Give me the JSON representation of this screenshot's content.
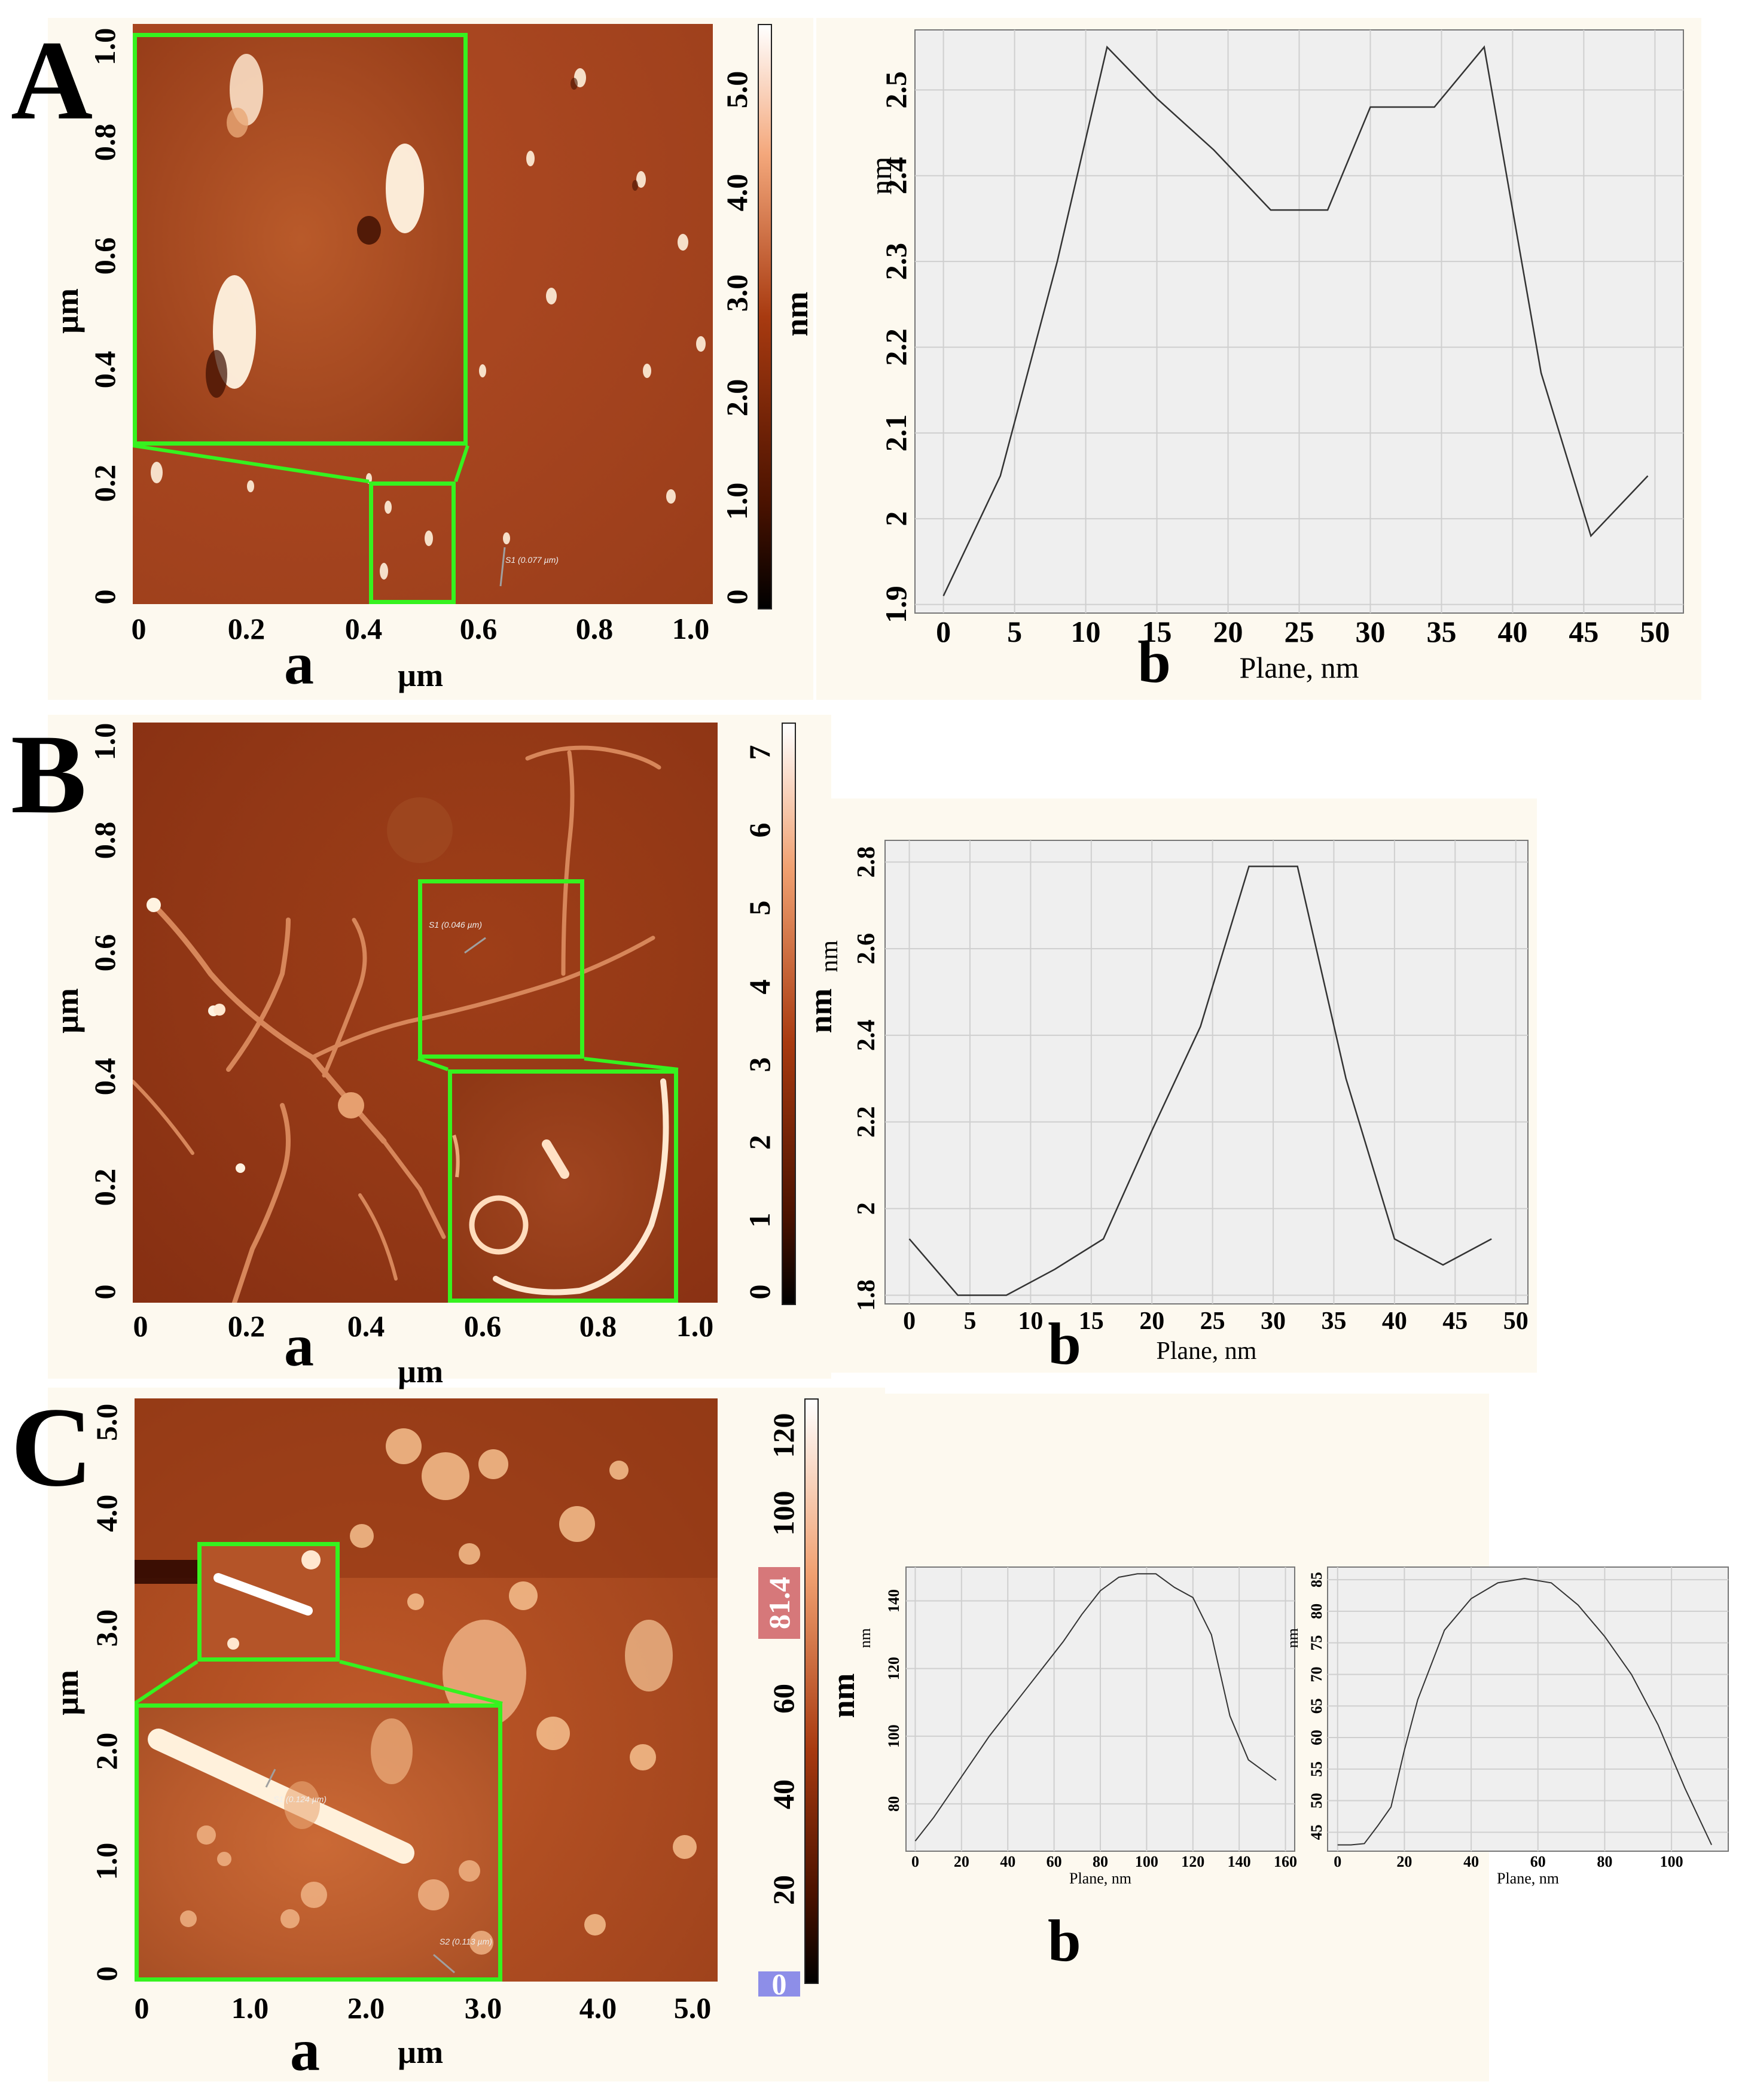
{
  "panels": [
    {
      "letter": "A",
      "afm": {
        "sub_label": "a",
        "x_label": "µm",
        "y_label": "µm",
        "x_ticks": [
          "0",
          "0.2",
          "0.4",
          "0.6",
          "0.8",
          "1.0"
        ],
        "y_ticks": [
          "0",
          "0.2",
          "0.4",
          "0.6",
          "0.8",
          "1.0"
        ],
        "colorbar_label": "nm",
        "colorbar_ticks": [
          "0",
          "1.0",
          "2.0",
          "3.0",
          "4.0",
          "5.0"
        ],
        "section_annotations": [
          "S1 (0.077 µm)"
        ]
      }
    },
    {
      "letter": "B",
      "afm": {
        "sub_label": "a",
        "x_label": "µm",
        "y_label": "µm",
        "x_ticks": [
          "0",
          "0.2",
          "0.4",
          "0.6",
          "0.8",
          "1.0"
        ],
        "y_ticks": [
          "0",
          "0.2",
          "0.4",
          "0.6",
          "0.8",
          "1.0"
        ],
        "colorbar_label": "nm",
        "colorbar_ticks": [
          "0",
          "1",
          "2",
          "3",
          "4",
          "5",
          "6",
          "7"
        ],
        "section_annotations": [
          "S1 (0.046 µm)"
        ]
      }
    },
    {
      "letter": "C",
      "afm": {
        "sub_label": "a",
        "x_label": "µm",
        "y_label": "µm",
        "x_ticks": [
          "0",
          "1.0",
          "2.0",
          "3.0",
          "4.0",
          "5.0"
        ],
        "y_ticks": [
          "0",
          "1.0",
          "2.0",
          "3.0",
          "4.0",
          "5.0"
        ],
        "colorbar_label": "nm",
        "colorbar_ticks": [
          "20",
          "40",
          "60",
          "100",
          "120"
        ],
        "colorbar_max_badge": "81.4",
        "colorbar_min_badge": "0",
        "section_annotations": [
          "S1 (0.124 µm)",
          "S2 (0.113 µm)"
        ]
      }
    }
  ],
  "chart_data": [
    {
      "id": "A-b",
      "type": "line",
      "sub_label": "b",
      "xlabel": "Plane, nm",
      "ylabel": "nm",
      "xlim": [
        -2,
        52
      ],
      "ylim": [
        1.89,
        2.57
      ],
      "x_ticks": [
        0,
        5,
        10,
        15,
        20,
        25,
        30,
        35,
        40,
        45,
        50
      ],
      "y_ticks": [
        1.9,
        2.0,
        2.1,
        2.2,
        2.3,
        2.4,
        2.5
      ],
      "grid": true,
      "x": [
        0,
        4,
        8,
        11.5,
        15,
        19,
        23,
        27,
        30,
        34.5,
        38,
        42,
        45.5,
        49.5
      ],
      "y": [
        1.91,
        2.05,
        2.3,
        2.55,
        2.49,
        2.43,
        2.36,
        2.36,
        2.48,
        2.48,
        2.55,
        2.17,
        1.98,
        2.05
      ]
    },
    {
      "id": "B-b",
      "type": "line",
      "sub_label": "b",
      "xlabel": "Plane, nm",
      "ylabel": "nm",
      "xlim": [
        -2,
        51
      ],
      "ylim": [
        1.78,
        2.85
      ],
      "x_ticks": [
        0,
        5,
        10,
        15,
        20,
        25,
        30,
        35,
        40,
        45,
        50
      ],
      "y_ticks": [
        1.8,
        2.0,
        2.2,
        2.4,
        2.6,
        2.8
      ],
      "grid": true,
      "x": [
        0,
        4,
        8,
        12,
        16,
        20,
        24,
        28,
        32,
        36,
        40,
        44,
        48
      ],
      "y": [
        1.93,
        1.8,
        1.8,
        1.86,
        1.93,
        2.18,
        2.42,
        2.79,
        2.79,
        2.3,
        1.93,
        1.87,
        1.93
      ]
    },
    {
      "id": "C-b1",
      "type": "line",
      "sub_label": "b",
      "xlabel": "Plane, nm",
      "ylabel": "nm",
      "xlim": [
        -4,
        164
      ],
      "ylim": [
        66,
        150
      ],
      "x_ticks": [
        0,
        20,
        40,
        60,
        80,
        100,
        120,
        140,
        160
      ],
      "y_ticks": [
        80,
        100,
        120,
        140
      ],
      "grid": true,
      "x": [
        0,
        8,
        16,
        24,
        32,
        40,
        48,
        56,
        64,
        72,
        80,
        88,
        96,
        104,
        112,
        120,
        128,
        136,
        144,
        156
      ],
      "y": [
        69,
        76,
        84,
        92,
        100,
        107,
        114,
        121,
        128,
        136,
        143,
        147,
        148,
        148,
        144,
        141,
        130,
        106,
        93,
        87
      ]
    },
    {
      "id": "C-b2",
      "type": "line",
      "xlabel": "Plane, nm",
      "ylabel": "nm",
      "xlim": [
        -3,
        117
      ],
      "ylim": [
        42,
        87
      ],
      "x_ticks": [
        0,
        20,
        40,
        60,
        80,
        100
      ],
      "y_ticks": [
        45,
        50,
        55,
        60,
        65,
        70,
        75,
        80,
        85
      ],
      "grid": true,
      "x": [
        0,
        4,
        8,
        12,
        16,
        20,
        24,
        32,
        40,
        48,
        56,
        64,
        72,
        80,
        88,
        96,
        104,
        112
      ],
      "y": [
        43,
        43,
        43.2,
        46,
        49,
        58,
        66,
        77,
        82,
        84.5,
        85.2,
        84.5,
        81,
        76,
        70,
        62,
        52,
        43
      ]
    }
  ],
  "colors": {
    "afm_dark": "#3a0d00",
    "afm_mid": "#a8401a",
    "afm_bright": "#ffe7cf",
    "zoom_box": "#36f21f",
    "badge_max": "#d6787a",
    "badge_min": "#8d8ee8",
    "plot_bg": "#efefef",
    "grid": "#cfcfcf",
    "line": "#333333"
  }
}
